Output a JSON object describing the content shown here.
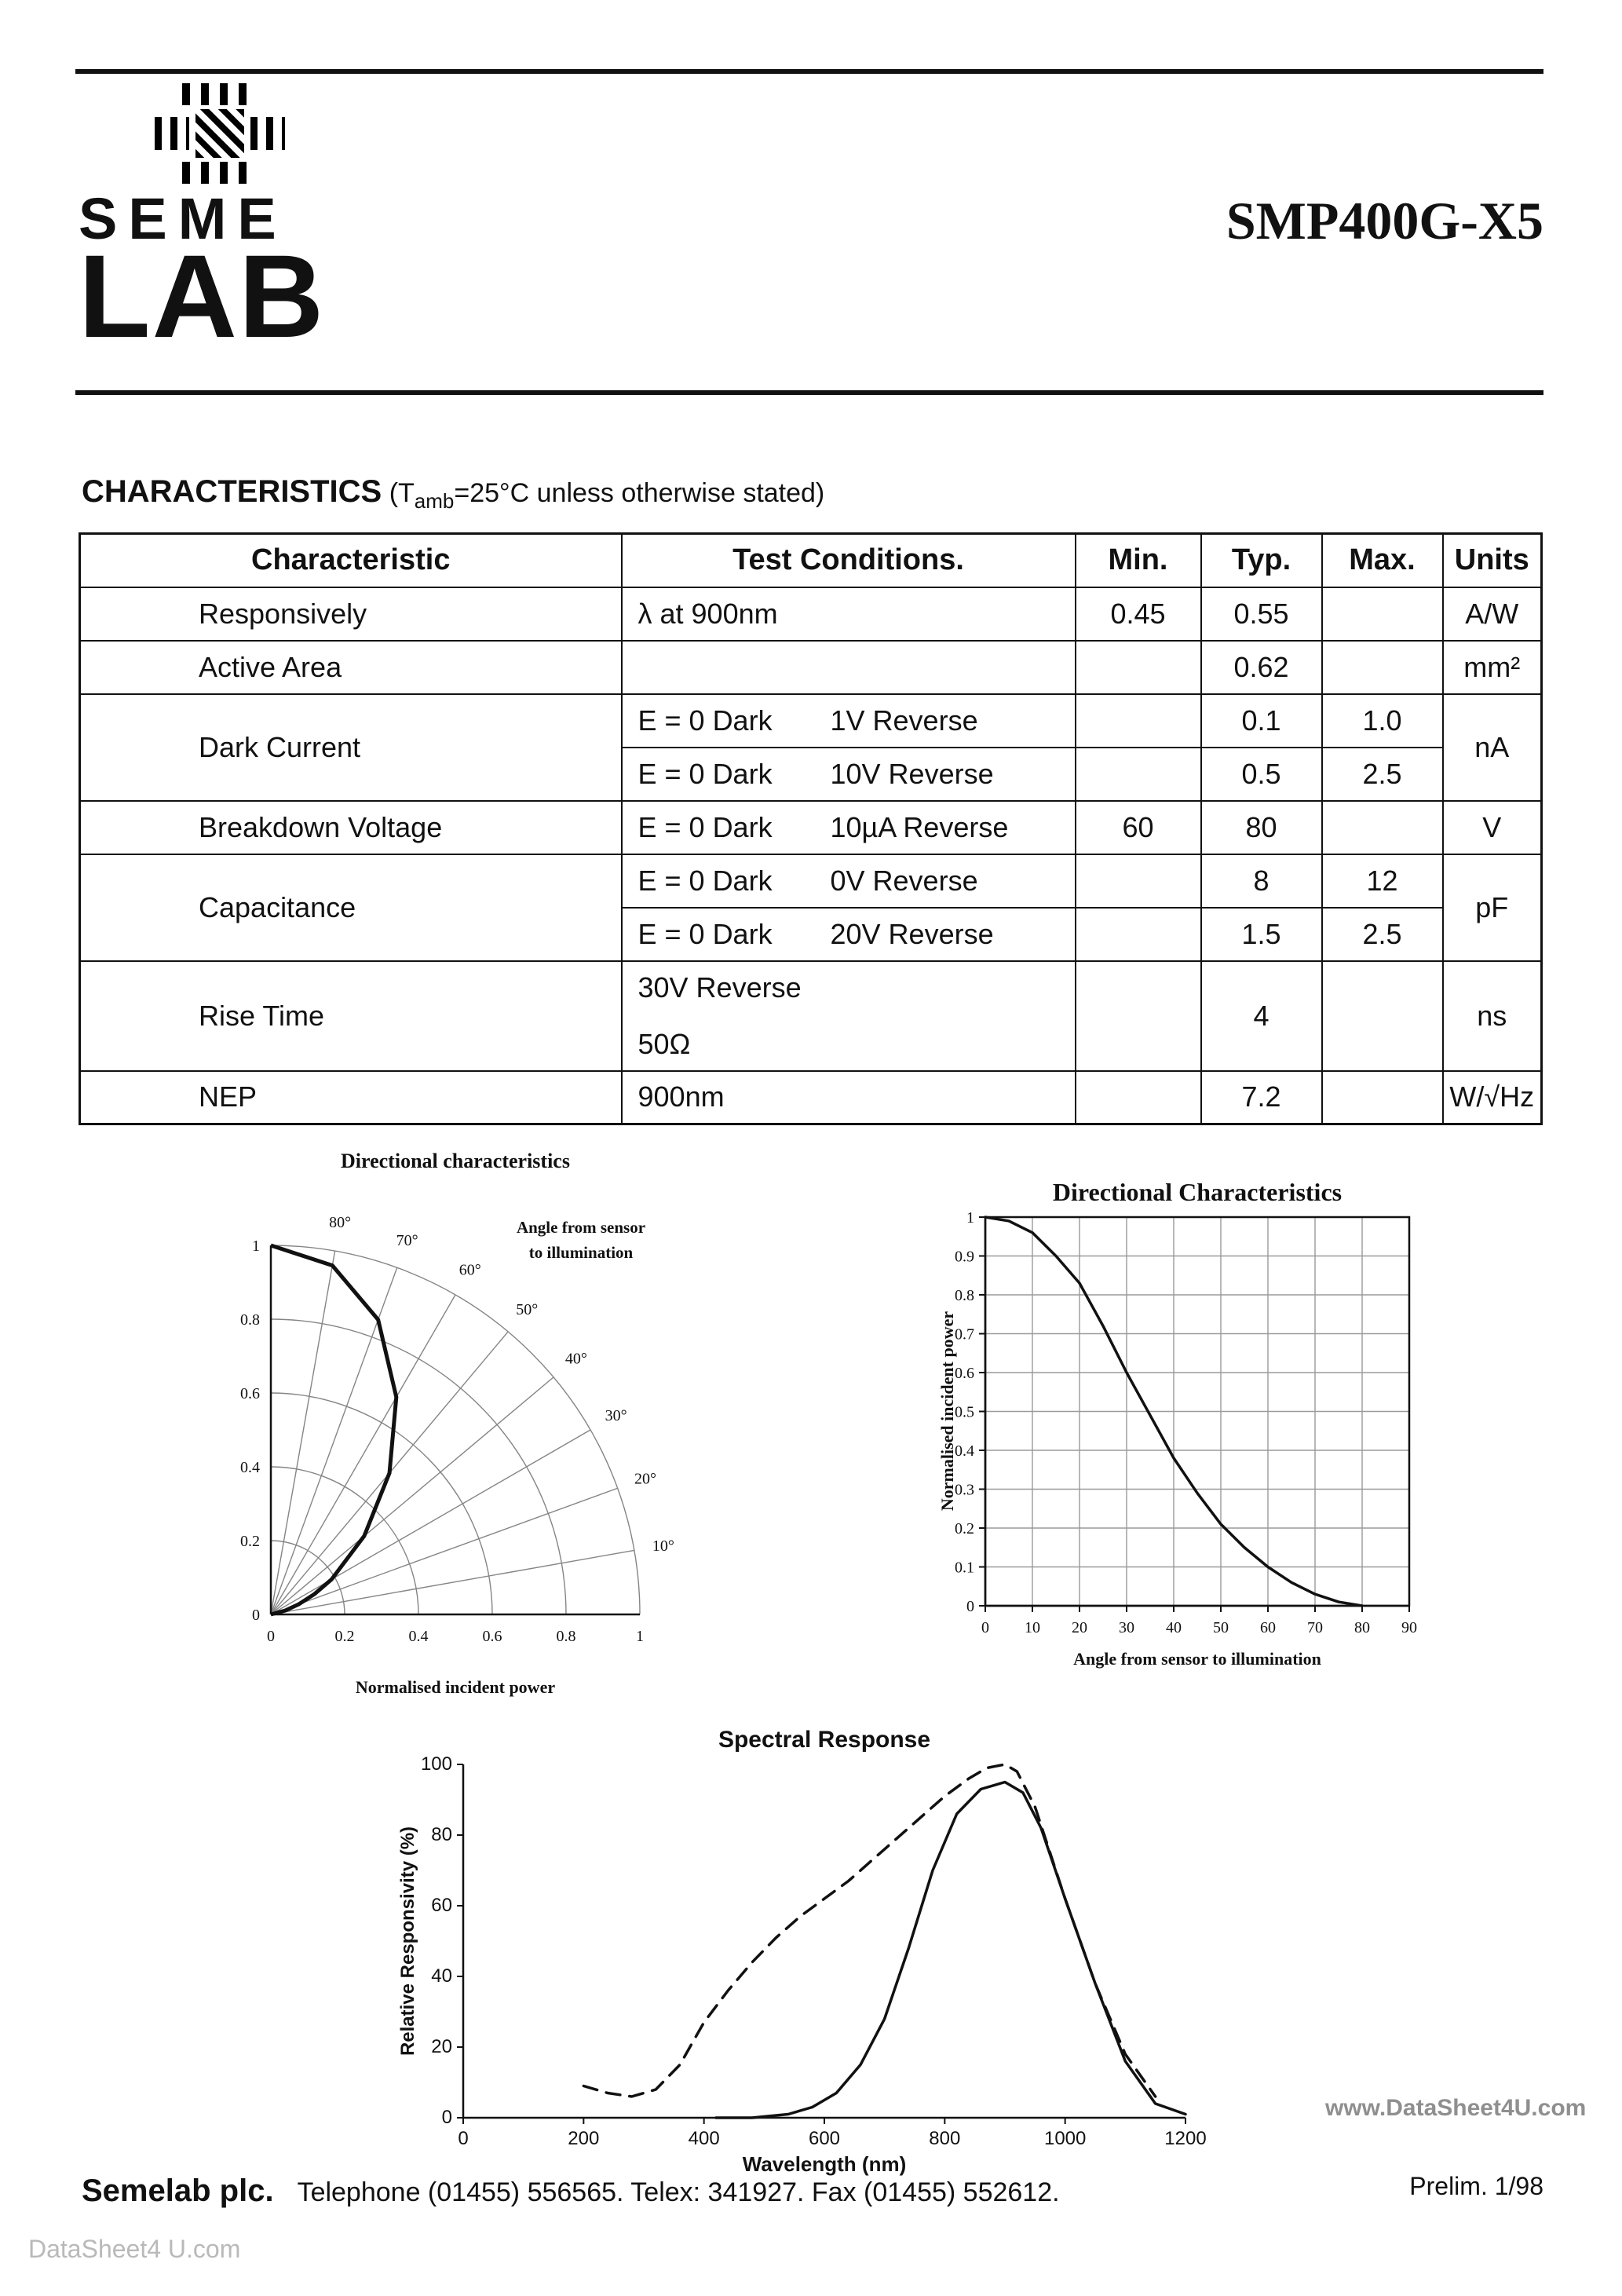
{
  "header": {
    "logo_top": "SEME",
    "logo_bottom": "LAB",
    "part_number": "SMP400G-X5"
  },
  "characteristics_heading": {
    "title": "CHARACTERISTICS",
    "cond_pre": "(T",
    "cond_sub": "amb",
    "cond_post": "=25°C unless otherwise stated)"
  },
  "table": {
    "headers": [
      "Characteristic",
      "Test Conditions.",
      "Min.",
      "Typ.",
      "Max.",
      "Units"
    ],
    "rows": {
      "responsively": {
        "name": "Responsively",
        "cond": "λ at 900nm",
        "min": "0.45",
        "typ": "0.55",
        "units": "A/W"
      },
      "active_area": {
        "name": "Active Area",
        "typ": "0.62",
        "units": "mm²"
      },
      "dark_current": {
        "name": "Dark Current",
        "units": "nA",
        "r1": {
          "cond_a": "E = 0 Dark",
          "cond_b": "1V Reverse",
          "typ": "0.1",
          "max": "1.0"
        },
        "r2": {
          "cond_a": "E = 0 Dark",
          "cond_b": "10V Reverse",
          "typ": "0.5",
          "max": "2.5"
        }
      },
      "breakdown": {
        "name": "Breakdown Voltage",
        "cond_a": "E = 0 Dark",
        "cond_b": "10µA Reverse",
        "min": "60",
        "typ": "80",
        "units": "V"
      },
      "capacitance": {
        "name": "Capacitance",
        "units": "pF",
        "r1": {
          "cond_a": "E = 0 Dark",
          "cond_b": "0V Reverse",
          "typ": "8",
          "max": "12"
        },
        "r2": {
          "cond_a": "E = 0 Dark",
          "cond_b": "20V Reverse",
          "typ": "1.5",
          "max": "2.5"
        }
      },
      "rise_time": {
        "name": "Rise Time",
        "cond_l1": "30V Reverse",
        "cond_l2": "50Ω",
        "typ": "4",
        "units": "ns"
      },
      "nep": {
        "name": "NEP",
        "cond": "900nm",
        "typ": "7.2",
        "units": "W/√Hz"
      }
    }
  },
  "chart_data": [
    {
      "type": "line",
      "variant": "polar",
      "title": "Directional characteristics",
      "note_line1": "Angle from sensor",
      "note_line2": "to illumination",
      "xlabel": "Normalised incident power",
      "radial_ticks": [
        0,
        0.2,
        0.4,
        0.6,
        0.8,
        1
      ],
      "angle_lines_deg": [
        10,
        20,
        30,
        40,
        50,
        60,
        70,
        80
      ],
      "angle_labels": [
        "80°",
        "70°",
        "60°",
        "50°",
        "40°",
        "30°",
        "20°",
        "10°"
      ],
      "curve": {
        "angles_deg": [
          0,
          10,
          20,
          30,
          40,
          50,
          60,
          65,
          70,
          75,
          80
        ],
        "r": [
          1,
          0.96,
          0.85,
          0.68,
          0.5,
          0.33,
          0.19,
          0.13,
          0.08,
          0.04,
          0
        ]
      }
    },
    {
      "type": "line",
      "title": "Directional Characteristics",
      "xlabel": "Angle from sensor to illumination",
      "ylabel": "Normalised incident power",
      "xlim": [
        0,
        90
      ],
      "ylim": [
        0,
        1
      ],
      "xticks": [
        0,
        10,
        20,
        30,
        40,
        50,
        60,
        70,
        80,
        90
      ],
      "yticks": [
        0,
        0.1,
        0.2,
        0.3,
        0.4,
        0.5,
        0.6,
        0.7,
        0.8,
        0.9,
        1
      ],
      "grid": true,
      "frame": true,
      "x": [
        0,
        5,
        10,
        15,
        20,
        25,
        30,
        35,
        40,
        45,
        50,
        55,
        60,
        65,
        70,
        75,
        80
      ],
      "y": [
        1.0,
        0.99,
        0.96,
        0.9,
        0.83,
        0.72,
        0.6,
        0.49,
        0.38,
        0.29,
        0.21,
        0.15,
        0.1,
        0.06,
        0.03,
        0.01,
        0
      ]
    },
    {
      "type": "line",
      "title": "Spectral Response",
      "xlabel": "Wavelength (nm)",
      "ylabel": "Relative Responsivity (%)",
      "xlim": [
        0,
        1200
      ],
      "ylim": [
        0,
        100
      ],
      "xticks": [
        0,
        200,
        400,
        600,
        800,
        1000,
        1200
      ],
      "yticks": [
        0,
        20,
        40,
        60,
        80,
        100
      ],
      "grid": false,
      "frame": false,
      "series": [
        {
          "name": "dashed-curve",
          "style": "dashed",
          "x": [
            200,
            240,
            280,
            320,
            360,
            400,
            440,
            480,
            520,
            560,
            600,
            640,
            680,
            720,
            760,
            800,
            840,
            870,
            900,
            920,
            950,
            1000,
            1050,
            1100,
            1150
          ],
          "y": [
            9,
            7,
            6,
            8,
            15,
            27,
            36,
            44,
            51,
            57,
            62,
            67,
            73,
            79,
            85,
            91,
            96,
            99,
            100,
            98,
            88,
            62,
            38,
            18,
            6
          ]
        },
        {
          "name": "solid-curve",
          "style": "solid",
          "x": [
            420,
            480,
            540,
            580,
            620,
            660,
            700,
            740,
            780,
            820,
            860,
            900,
            930,
            960,
            1000,
            1050,
            1100,
            1150,
            1200
          ],
          "y": [
            0,
            0,
            1,
            3,
            7,
            15,
            28,
            48,
            70,
            86,
            93,
            95,
            92,
            82,
            62,
            38,
            16,
            4,
            1
          ]
        }
      ]
    }
  ],
  "page": {
    "watermark_right": "www.DataSheet4U.com",
    "watermark_bottom": "DataSheet4 U.com",
    "footer": {
      "company": "Semelab plc.",
      "contact": "Telephone (01455) 556565. Telex: 341927. Fax (01455) 552612.",
      "prelim": "Prelim. 1/98"
    }
  }
}
